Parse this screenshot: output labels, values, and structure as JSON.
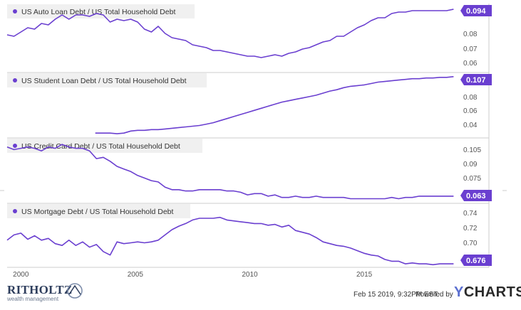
{
  "colors": {
    "line": "#6a3fd0",
    "badge": "#6a3fd0",
    "badge_text": "#ffffff",
    "tick": "#555555",
    "title_bg": "#f0f0f0",
    "title_text": "#333333",
    "border": "#cccccc"
  },
  "chart_data": [
    {
      "type": "line",
      "title": "US Auto Loan Debt / US Total Household Debt",
      "last_value": "0.094",
      "yticks": [
        "0.08",
        "0.07",
        "0.06"
      ],
      "ylim": [
        0.05,
        0.098
      ],
      "series": [
        {
          "x": [
            1999.4,
            1999.7,
            2000,
            2000.3,
            2000.6,
            2000.9,
            2001.2,
            2001.5,
            2001.8,
            2002.1,
            2002.4,
            2002.7,
            2003,
            2003.3,
            2003.6,
            2003.9,
            2004.2,
            2004.5,
            2004.8,
            2005.1,
            2005.4,
            2005.7,
            2006,
            2006.3,
            2006.6,
            2006.9,
            2007.2,
            2007.5,
            2007.8,
            2008.1,
            2008.4,
            2008.7,
            2009,
            2009.3,
            2009.6,
            2009.9,
            2010.2,
            2010.5,
            2010.8,
            2011.1,
            2011.4,
            2011.7,
            2012,
            2012.3,
            2012.6,
            2012.9,
            2013.2,
            2013.5,
            2013.8,
            2014.1,
            2014.4,
            2014.7,
            2015,
            2015.3,
            2015.6,
            2015.9,
            2016.2,
            2016.5,
            2016.8,
            2017.1,
            2017.4,
            2017.7,
            2018,
            2018.3,
            2018.6,
            2018.9
          ],
          "y": [
            0.076,
            0.075,
            0.078,
            0.081,
            0.08,
            0.084,
            0.083,
            0.087,
            0.09,
            0.087,
            0.09,
            0.09,
            0.089,
            0.091,
            0.09,
            0.085,
            0.087,
            0.086,
            0.087,
            0.085,
            0.08,
            0.078,
            0.082,
            0.077,
            0.074,
            0.073,
            0.072,
            0.069,
            0.068,
            0.067,
            0.065,
            0.065,
            0.064,
            0.063,
            0.062,
            0.061,
            0.061,
            0.06,
            0.061,
            0.062,
            0.061,
            0.063,
            0.064,
            0.066,
            0.067,
            0.069,
            0.071,
            0.072,
            0.075,
            0.075,
            0.078,
            0.081,
            0.083,
            0.086,
            0.088,
            0.088,
            0.091,
            0.092,
            0.092,
            0.093,
            0.093,
            0.093,
            0.093,
            0.093,
            0.093,
            0.094
          ]
        }
      ]
    },
    {
      "type": "line",
      "title": "US Student Loan Debt / US Total Household Debt",
      "last_value": "0.107",
      "yticks": [
        "0.08",
        "0.06",
        "0.04"
      ],
      "ylim": [
        0.02,
        0.113
      ],
      "series": [
        {
          "x": [
            2003.25,
            2003.6,
            2003.9,
            2004.2,
            2004.5,
            2004.8,
            2005.1,
            2005.4,
            2005.7,
            2006,
            2006.3,
            2006.6,
            2006.9,
            2007.2,
            2007.5,
            2007.8,
            2008.1,
            2008.4,
            2008.7,
            2009,
            2009.3,
            2009.6,
            2009.9,
            2010.2,
            2010.5,
            2010.8,
            2011.1,
            2011.4,
            2011.7,
            2012,
            2012.3,
            2012.6,
            2012.9,
            2013.2,
            2013.5,
            2013.8,
            2014.1,
            2014.4,
            2014.7,
            2015,
            2015.3,
            2015.6,
            2015.9,
            2016.2,
            2016.5,
            2016.8,
            2017.1,
            2017.4,
            2017.7,
            2018,
            2018.3,
            2018.6,
            2018.9
          ],
          "y": [
            0.025,
            0.025,
            0.025,
            0.024,
            0.025,
            0.028,
            0.029,
            0.029,
            0.03,
            0.03,
            0.031,
            0.032,
            0.033,
            0.034,
            0.035,
            0.036,
            0.038,
            0.04,
            0.043,
            0.046,
            0.049,
            0.052,
            0.055,
            0.058,
            0.061,
            0.064,
            0.067,
            0.07,
            0.072,
            0.074,
            0.076,
            0.078,
            0.08,
            0.083,
            0.086,
            0.088,
            0.091,
            0.093,
            0.094,
            0.095,
            0.097,
            0.099,
            0.1,
            0.101,
            0.102,
            0.103,
            0.104,
            0.104,
            0.105,
            0.105,
            0.106,
            0.106,
            0.107
          ]
        }
      ]
    },
    {
      "type": "line",
      "title": "US Credit Card Debt / US Total Household Debt",
      "last_value": "0.063",
      "yticks": [
        "0.105",
        "0.09",
        "0.075"
      ],
      "ylim": [
        0.058,
        0.108
      ],
      "series": [
        {
          "x": [
            1999.4,
            1999.7,
            2000,
            2000.3,
            2000.6,
            2000.9,
            2001.2,
            2001.5,
            2001.8,
            2002.1,
            2002.4,
            2002.7,
            2003,
            2003.3,
            2003.6,
            2003.9,
            2004.2,
            2004.5,
            2004.8,
            2005.1,
            2005.4,
            2005.7,
            2006,
            2006.3,
            2006.6,
            2006.9,
            2007.2,
            2007.5,
            2007.8,
            2008.1,
            2008.4,
            2008.7,
            2009,
            2009.3,
            2009.6,
            2009.9,
            2010.2,
            2010.5,
            2010.8,
            2011.1,
            2011.4,
            2011.7,
            2012,
            2012.3,
            2012.6,
            2012.9,
            2013.2,
            2013.5,
            2013.8,
            2014.1,
            2014.4,
            2014.7,
            2015,
            2015.3,
            2015.6,
            2015.9,
            2016.2,
            2016.5,
            2016.8,
            2017.1,
            2017.4,
            2017.7,
            2018,
            2018.3,
            2018.6,
            2018.9
          ],
          "y": [
            0.101,
            0.099,
            0.1,
            0.101,
            0.1,
            0.098,
            0.101,
            0.1,
            0.103,
            0.101,
            0.1,
            0.1,
            0.098,
            0.092,
            0.093,
            0.09,
            0.086,
            0.084,
            0.082,
            0.079,
            0.077,
            0.075,
            0.074,
            0.07,
            0.068,
            0.068,
            0.067,
            0.067,
            0.068,
            0.068,
            0.068,
            0.068,
            0.067,
            0.067,
            0.066,
            0.064,
            0.065,
            0.065,
            0.063,
            0.064,
            0.062,
            0.062,
            0.063,
            0.062,
            0.062,
            0.063,
            0.062,
            0.062,
            0.062,
            0.062,
            0.061,
            0.061,
            0.061,
            0.061,
            0.061,
            0.061,
            0.062,
            0.061,
            0.062,
            0.062,
            0.063,
            0.063,
            0.063,
            0.063,
            0.063,
            0.063
          ]
        }
      ]
    },
    {
      "type": "line",
      "title": "US Mortgage Debt / US Total Household Debt",
      "last_value": "0.676",
      "yticks": [
        "0.74",
        "0.72",
        "0.70",
        "0.68"
      ],
      "ylim": [
        0.672,
        0.745
      ],
      "series": [
        {
          "x": [
            1999.4,
            1999.7,
            2000,
            2000.3,
            2000.6,
            2000.9,
            2001.2,
            2001.5,
            2001.8,
            2002.1,
            2002.4,
            2002.7,
            2003,
            2003.3,
            2003.6,
            2003.9,
            2004.2,
            2004.5,
            2004.8,
            2005.1,
            2005.4,
            2005.7,
            2006,
            2006.3,
            2006.6,
            2006.9,
            2007.2,
            2007.5,
            2007.8,
            2008.1,
            2008.4,
            2008.7,
            2009,
            2009.3,
            2009.6,
            2009.9,
            2010.2,
            2010.5,
            2010.8,
            2011.1,
            2011.4,
            2011.7,
            2012,
            2012.3,
            2012.6,
            2012.9,
            2013.2,
            2013.5,
            2013.8,
            2014.1,
            2014.4,
            2014.7,
            2015,
            2015.3,
            2015.6,
            2015.9,
            2016.2,
            2016.5,
            2016.8,
            2017.1,
            2017.4,
            2017.7,
            2018,
            2018.3,
            2018.6,
            2018.9
          ],
          "y": [
            0.703,
            0.709,
            0.711,
            0.704,
            0.708,
            0.703,
            0.705,
            0.699,
            0.697,
            0.703,
            0.697,
            0.701,
            0.695,
            0.698,
            0.69,
            0.686,
            0.701,
            0.699,
            0.7,
            0.701,
            0.7,
            0.701,
            0.703,
            0.709,
            0.715,
            0.719,
            0.722,
            0.726,
            0.728,
            0.728,
            0.728,
            0.729,
            0.726,
            0.725,
            0.724,
            0.723,
            0.722,
            0.722,
            0.72,
            0.721,
            0.718,
            0.72,
            0.714,
            0.712,
            0.71,
            0.706,
            0.701,
            0.699,
            0.697,
            0.696,
            0.694,
            0.691,
            0.688,
            0.686,
            0.685,
            0.681,
            0.679,
            0.679,
            0.676,
            0.677,
            0.676,
            0.676,
            0.675,
            0.676,
            0.676,
            0.676
          ]
        }
      ]
    }
  ],
  "x_axis": {
    "ticks": [
      "2000",
      "2005",
      "2010",
      "2015"
    ],
    "values": [
      2000,
      2005,
      2010,
      2015
    ],
    "xlim": [
      1999.4,
      2019.2
    ]
  },
  "footer": {
    "logo_main": "RITHOLTZ",
    "logo_sub": "wealth management",
    "timestamp": "Feb 15 2019, 9:32PM EST.",
    "powered": "Powered by",
    "brand_y": "Y",
    "brand_rest": "CHARTS"
  }
}
